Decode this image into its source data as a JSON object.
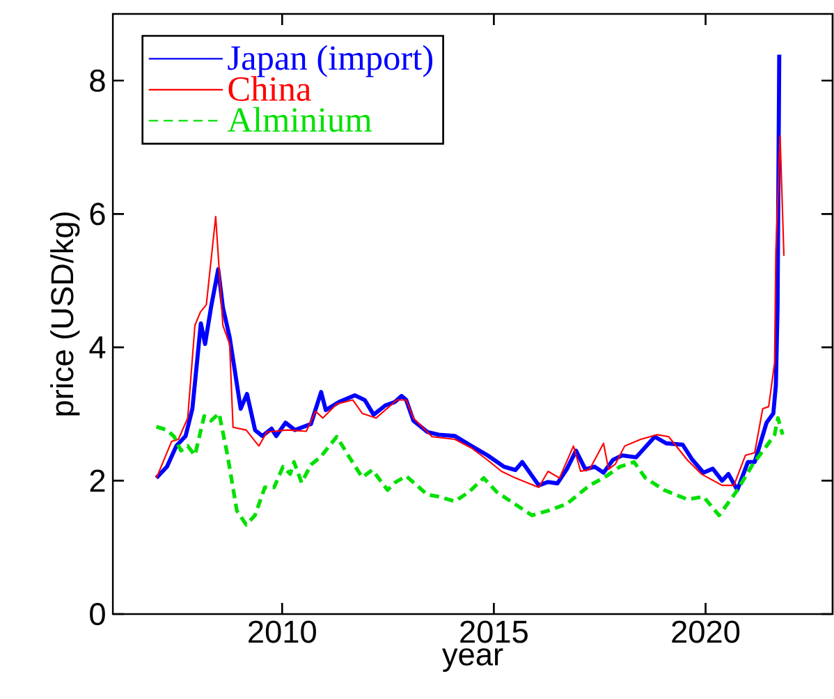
{
  "chart_data": {
    "type": "line",
    "xlabel": "year",
    "ylabel": "price (USD/kg)",
    "xlim": [
      2006,
      2023
    ],
    "xticks": [
      2010,
      2015,
      2020
    ],
    "ylim": [
      0,
      9
    ],
    "yticks": [
      0,
      2,
      4,
      6,
      8
    ],
    "grid": false,
    "legend": "top left",
    "marker": "none",
    "series": [
      {
        "name": "Japan (import)",
        "color": "#0000ff",
        "line_style": "solid",
        "x": [
          2007.03,
          2007.28,
          2007.5,
          2007.72,
          2007.88,
          2008.08,
          2008.18,
          2008.32,
          2008.49,
          2008.6,
          2008.76,
          2008.87,
          2009.02,
          2009.17,
          2009.36,
          2009.53,
          2009.75,
          2009.86,
          2010.08,
          2010.3,
          2010.68,
          2010.92,
          2011.03,
          2011.34,
          2011.72,
          2011.95,
          2012.16,
          2012.44,
          2012.66,
          2012.82,
          2012.93,
          2013.1,
          2013.43,
          2013.7,
          2014.08,
          2014.47,
          2014.85,
          2015.24,
          2015.51,
          2015.67,
          2016.06,
          2016.28,
          2016.5,
          2016.72,
          2016.94,
          2017.16,
          2017.38,
          2017.59,
          2017.81,
          2018.03,
          2018.36,
          2018.8,
          2019.07,
          2019.46,
          2019.68,
          2019.95,
          2020.17,
          2020.39,
          2020.54,
          2020.75,
          2021.0,
          2021.16,
          2021.44,
          2021.6,
          2021.66,
          2021.7,
          2021.74
        ],
        "values": [
          2.04,
          2.21,
          2.52,
          2.67,
          3.08,
          4.36,
          4.05,
          4.6,
          5.17,
          4.6,
          4.15,
          3.7,
          3.08,
          3.3,
          2.76,
          2.67,
          2.78,
          2.67,
          2.87,
          2.76,
          2.85,
          3.33,
          3.06,
          3.18,
          3.28,
          3.21,
          2.99,
          3.13,
          3.18,
          3.27,
          3.21,
          2.9,
          2.73,
          2.69,
          2.67,
          2.52,
          2.38,
          2.21,
          2.16,
          2.28,
          1.93,
          1.98,
          1.96,
          2.17,
          2.45,
          2.17,
          2.21,
          2.12,
          2.31,
          2.38,
          2.35,
          2.66,
          2.56,
          2.54,
          2.32,
          2.12,
          2.18,
          2.0,
          2.1,
          1.86,
          2.28,
          2.28,
          2.87,
          3.01,
          3.43,
          4.6,
          8.39
        ]
      },
      {
        "name": "China",
        "color": "#ff0000",
        "line_style": "solid",
        "x": [
          2007.03,
          2007.39,
          2007.55,
          2007.77,
          2007.94,
          2008.07,
          2008.21,
          2008.43,
          2008.6,
          2008.76,
          2008.84,
          2009.15,
          2009.45,
          2009.64,
          2010.13,
          2010.57,
          2010.79,
          2010.96,
          2011.29,
          2011.67,
          2011.89,
          2012.22,
          2012.71,
          2012.93,
          2013.1,
          2013.54,
          2014.08,
          2014.47,
          2014.85,
          2015.18,
          2015.51,
          2016.06,
          2016.28,
          2016.55,
          2016.88,
          2017.05,
          2017.26,
          2017.59,
          2017.71,
          2017.87,
          2018.09,
          2018.47,
          2018.86,
          2019.13,
          2019.57,
          2019.9,
          2020.39,
          2020.67,
          2020.94,
          2021.16,
          2021.35,
          2021.49,
          2021.63,
          2021.66,
          2021.76,
          2021.85
        ],
        "values": [
          2.04,
          2.59,
          2.62,
          2.94,
          4.33,
          4.53,
          4.64,
          5.96,
          4.33,
          4.05,
          2.8,
          2.76,
          2.52,
          2.73,
          2.76,
          2.74,
          3.04,
          2.94,
          3.15,
          3.21,
          3.01,
          2.94,
          3.21,
          3.21,
          2.94,
          2.66,
          2.62,
          2.49,
          2.31,
          2.14,
          2.04,
          1.9,
          2.14,
          2.04,
          2.52,
          2.14,
          2.17,
          2.56,
          2.17,
          2.25,
          2.52,
          2.62,
          2.69,
          2.66,
          2.31,
          2.1,
          1.93,
          1.93,
          2.38,
          2.42,
          3.08,
          3.11,
          3.77,
          5.44,
          7.17,
          5.37
        ]
      },
      {
        "name": "Alminium",
        "color": "#00e000",
        "line_style": "dashed",
        "x": [
          2007.03,
          2007.28,
          2007.45,
          2007.61,
          2007.77,
          2007.94,
          2008.16,
          2008.32,
          2008.51,
          2008.71,
          2008.93,
          2009.15,
          2009.36,
          2009.59,
          2009.81,
          2010.02,
          2010.19,
          2010.28,
          2010.46,
          2010.68,
          2010.9,
          2011.29,
          2011.56,
          2011.89,
          2012.13,
          2012.49,
          2012.66,
          2012.93,
          2013.43,
          2013.7,
          2014.08,
          2014.41,
          2014.76,
          2015.07,
          2015.4,
          2015.9,
          2016.28,
          2016.72,
          2017.26,
          2017.59,
          2017.98,
          2018.31,
          2018.58,
          2019.02,
          2019.57,
          2019.95,
          2020.32,
          2020.72,
          2021.11,
          2021.44,
          2021.63,
          2021.71,
          2021.82
        ],
        "values": [
          2.81,
          2.76,
          2.66,
          2.45,
          2.52,
          2.38,
          2.97,
          2.9,
          3.01,
          2.38,
          1.55,
          1.34,
          1.48,
          1.9,
          1.9,
          2.21,
          2.1,
          2.28,
          1.97,
          2.24,
          2.35,
          2.66,
          2.38,
          2.05,
          2.16,
          1.86,
          1.97,
          2.07,
          1.79,
          1.76,
          1.69,
          1.83,
          2.04,
          1.83,
          1.69,
          1.48,
          1.55,
          1.65,
          1.93,
          2.04,
          2.21,
          2.28,
          2.04,
          1.86,
          1.72,
          1.76,
          1.48,
          1.83,
          2.24,
          2.52,
          2.69,
          2.94,
          2.69
        ]
      }
    ]
  }
}
